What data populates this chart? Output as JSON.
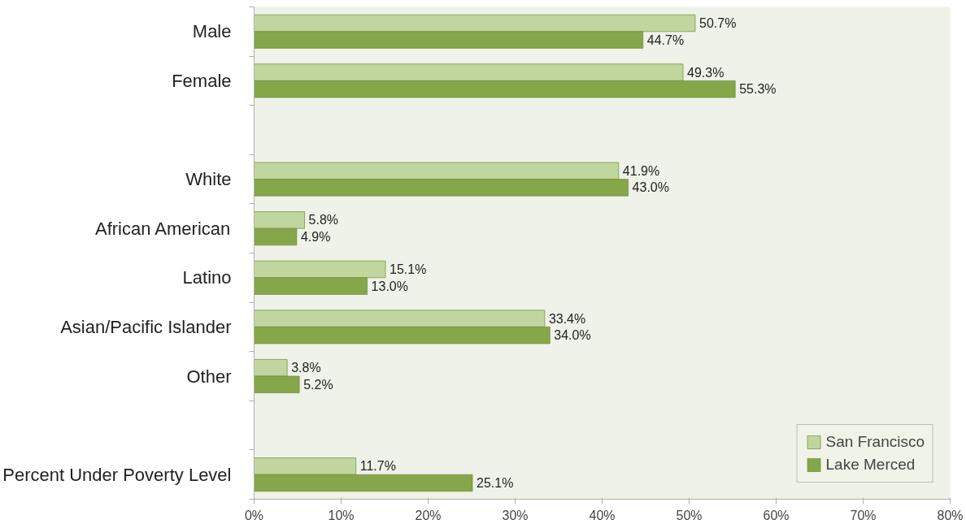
{
  "chart_data": {
    "type": "bar",
    "orientation": "horizontal",
    "categories": [
      "Male",
      "Female",
      null,
      "White",
      "African American",
      "Latino",
      "Asian/Pacific Islander",
      "Other",
      null,
      "Percent Under Poverty Level"
    ],
    "series": [
      {
        "name": "San Francisco",
        "color": "#c0d69e",
        "values": [
          50.7,
          49.3,
          null,
          41.9,
          5.8,
          15.1,
          33.4,
          3.8,
          null,
          11.7
        ],
        "value_labels": [
          "50.7%",
          "49.3%",
          null,
          "41.9%",
          "5.8%",
          "15.1%",
          "33.4%",
          "3.8%",
          null,
          "11.7%"
        ]
      },
      {
        "name": "Lake Merced",
        "color": "#86a64a",
        "values": [
          44.7,
          55.3,
          null,
          43.0,
          4.9,
          13.0,
          34.0,
          5.2,
          null,
          25.1
        ],
        "value_labels": [
          "44.7%",
          "55.3%",
          null,
          "43.0%",
          "4.9%",
          "13.0%",
          "34.0%",
          "5.2%",
          null,
          "25.1%"
        ]
      }
    ],
    "xlim": [
      0,
      80
    ],
    "xticks": [
      {
        "value": 0,
        "label": "0%"
      },
      {
        "value": 10,
        "label": "10%"
      },
      {
        "value": 20,
        "label": "20%"
      },
      {
        "value": 30,
        "label": "30%"
      },
      {
        "value": 40,
        "label": "40%"
      },
      {
        "value": 50,
        "label": "50%"
      },
      {
        "value": 60,
        "label": "60%"
      },
      {
        "value": 70,
        "label": "70%"
      },
      {
        "value": 80,
        "label": "80%"
      }
    ],
    "grid": false,
    "legend": "bottom right"
  }
}
